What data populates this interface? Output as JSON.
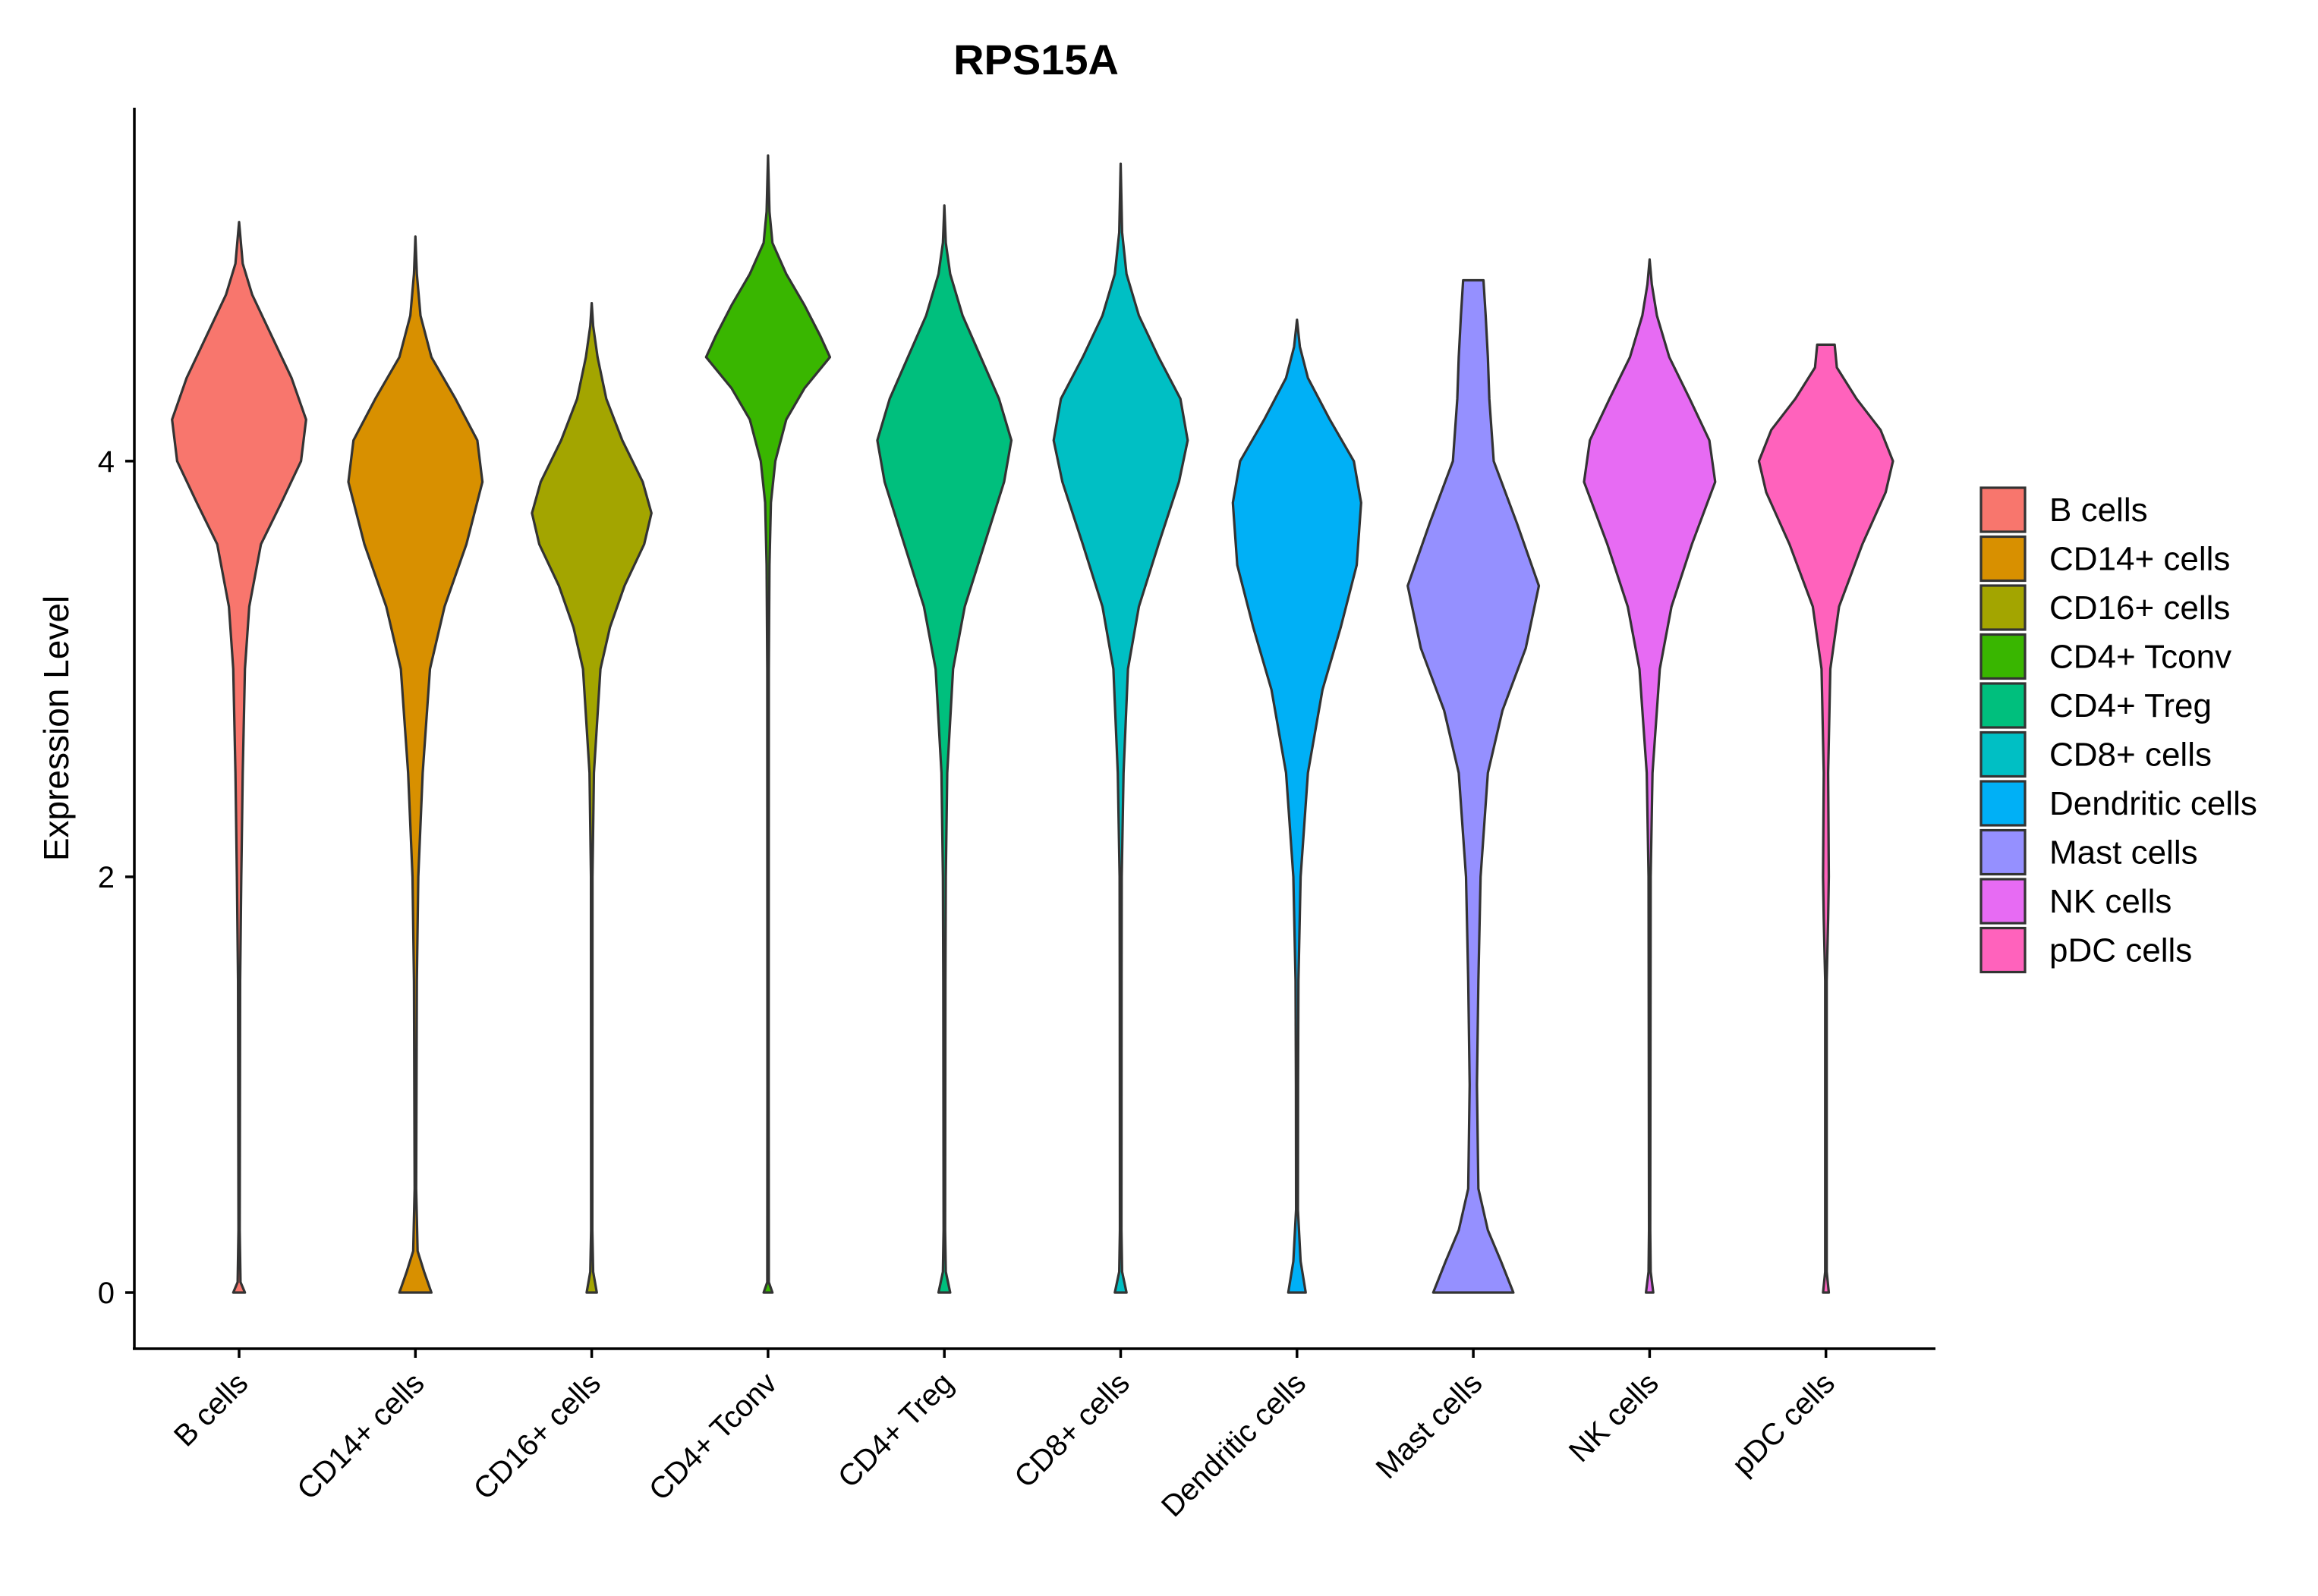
{
  "chart_data": {
    "type": "violin",
    "title": "RPS15A",
    "xlabel": "",
    "ylabel": "Expression Level",
    "ylim": [
      -0.27,
      5.7
    ],
    "y_ticks": [
      "0",
      "2",
      "4"
    ],
    "grid": false,
    "legend_position": "right",
    "categories": [
      "B cells",
      "CD14+ cells",
      "CD16+ cells",
      "CD4+ Tconv",
      "CD4+ Treg",
      "CD8+ cells",
      "Dendritic cells",
      "Mast cells",
      "NK cells",
      "pDC cells"
    ],
    "colors": [
      "#F8766D",
      "#D89000",
      "#A3A500",
      "#39B600",
      "#00BF7D",
      "#00BFC4",
      "#00B0F6",
      "#9590FF",
      "#E76BF3",
      "#FF62BC"
    ],
    "series": [
      {
        "name": "B cells",
        "max": 5.15,
        "profile": [
          [
            0,
            0.08
          ],
          [
            0.05,
            0.02
          ],
          [
            0.3,
            0.008
          ],
          [
            1.5,
            0.015
          ],
          [
            2.0,
            0.03
          ],
          [
            2.5,
            0.05
          ],
          [
            3.0,
            0.08
          ],
          [
            3.3,
            0.14
          ],
          [
            3.6,
            0.3
          ],
          [
            3.8,
            0.58
          ],
          [
            4.0,
            0.85
          ],
          [
            4.2,
            0.92
          ],
          [
            4.4,
            0.72
          ],
          [
            4.6,
            0.45
          ],
          [
            4.8,
            0.18
          ],
          [
            4.95,
            0.05
          ],
          [
            5.15,
            0.0
          ]
        ]
      },
      {
        "name": "CD14+ cells",
        "max": 5.08,
        "profile": [
          [
            0,
            0.22
          ],
          [
            0.1,
            0.12
          ],
          [
            0.2,
            0.03
          ],
          [
            0.5,
            0.01
          ],
          [
            1.5,
            0.02
          ],
          [
            2.0,
            0.04
          ],
          [
            2.5,
            0.1
          ],
          [
            3.0,
            0.2
          ],
          [
            3.3,
            0.4
          ],
          [
            3.6,
            0.7
          ],
          [
            3.9,
            0.92
          ],
          [
            4.1,
            0.85
          ],
          [
            4.3,
            0.55
          ],
          [
            4.5,
            0.22
          ],
          [
            4.7,
            0.07
          ],
          [
            4.9,
            0.02
          ],
          [
            5.08,
            0.0
          ]
        ]
      },
      {
        "name": "CD16+ cells",
        "max": 4.76,
        "profile": [
          [
            0,
            0.07
          ],
          [
            0.1,
            0.02
          ],
          [
            0.3,
            0.008
          ],
          [
            2.0,
            0.01
          ],
          [
            2.5,
            0.03
          ],
          [
            3.0,
            0.12
          ],
          [
            3.2,
            0.25
          ],
          [
            3.4,
            0.45
          ],
          [
            3.6,
            0.72
          ],
          [
            3.75,
            0.82
          ],
          [
            3.9,
            0.7
          ],
          [
            4.1,
            0.42
          ],
          [
            4.3,
            0.2
          ],
          [
            4.5,
            0.08
          ],
          [
            4.65,
            0.02
          ],
          [
            4.76,
            0.0
          ]
        ]
      },
      {
        "name": "CD4+ Tconv",
        "max": 5.47,
        "profile": [
          [
            0,
            0.06
          ],
          [
            0.05,
            0.01
          ],
          [
            1.0,
            0.008
          ],
          [
            3.0,
            0.01
          ],
          [
            3.5,
            0.02
          ],
          [
            3.8,
            0.04
          ],
          [
            4.0,
            0.1
          ],
          [
            4.2,
            0.25
          ],
          [
            4.35,
            0.5
          ],
          [
            4.5,
            0.85
          ],
          [
            4.6,
            0.72
          ],
          [
            4.75,
            0.5
          ],
          [
            4.9,
            0.25
          ],
          [
            5.05,
            0.06
          ],
          [
            5.2,
            0.02
          ],
          [
            5.47,
            0.0
          ]
        ]
      },
      {
        "name": "CD4+ Treg",
        "max": 5.23,
        "profile": [
          [
            0,
            0.08
          ],
          [
            0.1,
            0.02
          ],
          [
            0.3,
            0.01
          ],
          [
            1.5,
            0.015
          ],
          [
            2.0,
            0.02
          ],
          [
            2.5,
            0.04
          ],
          [
            3.0,
            0.12
          ],
          [
            3.3,
            0.28
          ],
          [
            3.6,
            0.55
          ],
          [
            3.9,
            0.82
          ],
          [
            4.1,
            0.92
          ],
          [
            4.3,
            0.75
          ],
          [
            4.5,
            0.5
          ],
          [
            4.7,
            0.25
          ],
          [
            4.9,
            0.08
          ],
          [
            5.05,
            0.02
          ],
          [
            5.23,
            0.0
          ]
        ]
      },
      {
        "name": "CD8+ cells",
        "max": 5.43,
        "profile": [
          [
            0,
            0.08
          ],
          [
            0.1,
            0.02
          ],
          [
            0.3,
            0.01
          ],
          [
            1.5,
            0.012
          ],
          [
            2.0,
            0.015
          ],
          [
            2.5,
            0.04
          ],
          [
            3.0,
            0.1
          ],
          [
            3.3,
            0.25
          ],
          [
            3.6,
            0.52
          ],
          [
            3.9,
            0.8
          ],
          [
            4.1,
            0.92
          ],
          [
            4.3,
            0.82
          ],
          [
            4.5,
            0.52
          ],
          [
            4.7,
            0.25
          ],
          [
            4.9,
            0.08
          ],
          [
            5.1,
            0.02
          ],
          [
            5.43,
            0.0
          ]
        ]
      },
      {
        "name": "Dendritic cells",
        "max": 4.68,
        "profile": [
          [
            0,
            0.12
          ],
          [
            0.15,
            0.05
          ],
          [
            0.4,
            0.012
          ],
          [
            1.0,
            0.015
          ],
          [
            1.5,
            0.02
          ],
          [
            2.0,
            0.05
          ],
          [
            2.5,
            0.15
          ],
          [
            2.9,
            0.35
          ],
          [
            3.2,
            0.6
          ],
          [
            3.5,
            0.82
          ],
          [
            3.8,
            0.88
          ],
          [
            4.0,
            0.78
          ],
          [
            4.2,
            0.45
          ],
          [
            4.4,
            0.15
          ],
          [
            4.55,
            0.04
          ],
          [
            4.68,
            0.0
          ]
        ]
      },
      {
        "name": "Mast cells",
        "max": 4.87,
        "profile": [
          [
            0,
            0.55
          ],
          [
            0.15,
            0.38
          ],
          [
            0.3,
            0.2
          ],
          [
            0.5,
            0.07
          ],
          [
            1.0,
            0.05
          ],
          [
            1.5,
            0.07
          ],
          [
            2.0,
            0.1
          ],
          [
            2.5,
            0.2
          ],
          [
            2.8,
            0.4
          ],
          [
            3.1,
            0.72
          ],
          [
            3.4,
            0.9
          ],
          [
            3.7,
            0.6
          ],
          [
            4.0,
            0.28
          ],
          [
            4.3,
            0.22
          ],
          [
            4.5,
            0.2
          ],
          [
            4.7,
            0.17
          ],
          [
            4.87,
            0.14
          ]
        ]
      },
      {
        "name": "NK cells",
        "max": 4.97,
        "profile": [
          [
            0,
            0.05
          ],
          [
            0.1,
            0.015
          ],
          [
            0.3,
            0.008
          ],
          [
            2.0,
            0.015
          ],
          [
            2.5,
            0.04
          ],
          [
            3.0,
            0.14
          ],
          [
            3.3,
            0.3
          ],
          [
            3.6,
            0.58
          ],
          [
            3.9,
            0.9
          ],
          [
            4.1,
            0.82
          ],
          [
            4.3,
            0.55
          ],
          [
            4.5,
            0.27
          ],
          [
            4.7,
            0.1
          ],
          [
            4.85,
            0.03
          ],
          [
            4.97,
            0.0
          ]
        ]
      },
      {
        "name": "pDC cells",
        "max": 4.56,
        "profile": [
          [
            0,
            0.04
          ],
          [
            0.1,
            0.01
          ],
          [
            1.5,
            0.01
          ],
          [
            1.8,
            0.03
          ],
          [
            2.0,
            0.04
          ],
          [
            2.5,
            0.03
          ],
          [
            3.0,
            0.06
          ],
          [
            3.3,
            0.18
          ],
          [
            3.6,
            0.5
          ],
          [
            3.85,
            0.82
          ],
          [
            4.0,
            0.92
          ],
          [
            4.15,
            0.75
          ],
          [
            4.3,
            0.42
          ],
          [
            4.45,
            0.15
          ],
          [
            4.56,
            0.12
          ]
        ]
      }
    ]
  }
}
